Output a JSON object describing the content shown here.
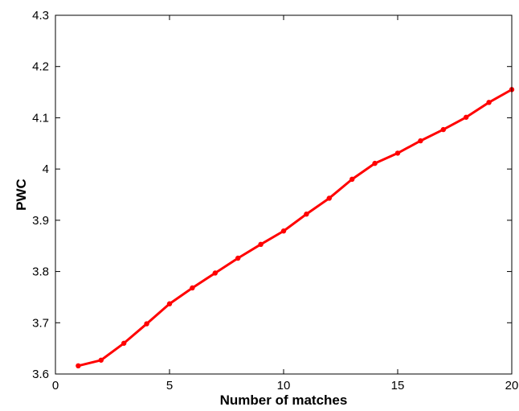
{
  "chart_data": {
    "type": "line",
    "title": "",
    "xlabel": "Number of matches",
    "ylabel": "PWC",
    "xlim": [
      0,
      20
    ],
    "ylim": [
      3.6,
      4.3
    ],
    "xticks": [
      0,
      5,
      10,
      15,
      20
    ],
    "xtick_labels": [
      "0",
      "5",
      "10",
      "15",
      "20"
    ],
    "yticks": [
      3.6,
      3.7,
      3.8,
      3.9,
      4.0,
      4.1,
      4.2,
      4.3
    ],
    "ytick_labels": [
      "3.6",
      "3.7",
      "3.8",
      "3.9",
      "4",
      "4.1",
      "4.2",
      "4.3"
    ],
    "grid": false,
    "legend": "none",
    "series": [
      {
        "color": "#ff0000",
        "marker": "dot",
        "x": [
          1,
          2,
          3,
          4,
          5,
          6,
          7,
          8,
          9,
          10,
          11,
          12,
          13,
          14,
          15,
          16,
          17,
          18,
          19,
          20
        ],
        "y": [
          3.616,
          3.627,
          3.66,
          3.698,
          3.737,
          3.768,
          3.797,
          3.826,
          3.853,
          3.879,
          3.912,
          3.943,
          3.98,
          4.011,
          4.031,
          4.055,
          4.077,
          4.101,
          4.13,
          4.155
        ]
      }
    ]
  }
}
